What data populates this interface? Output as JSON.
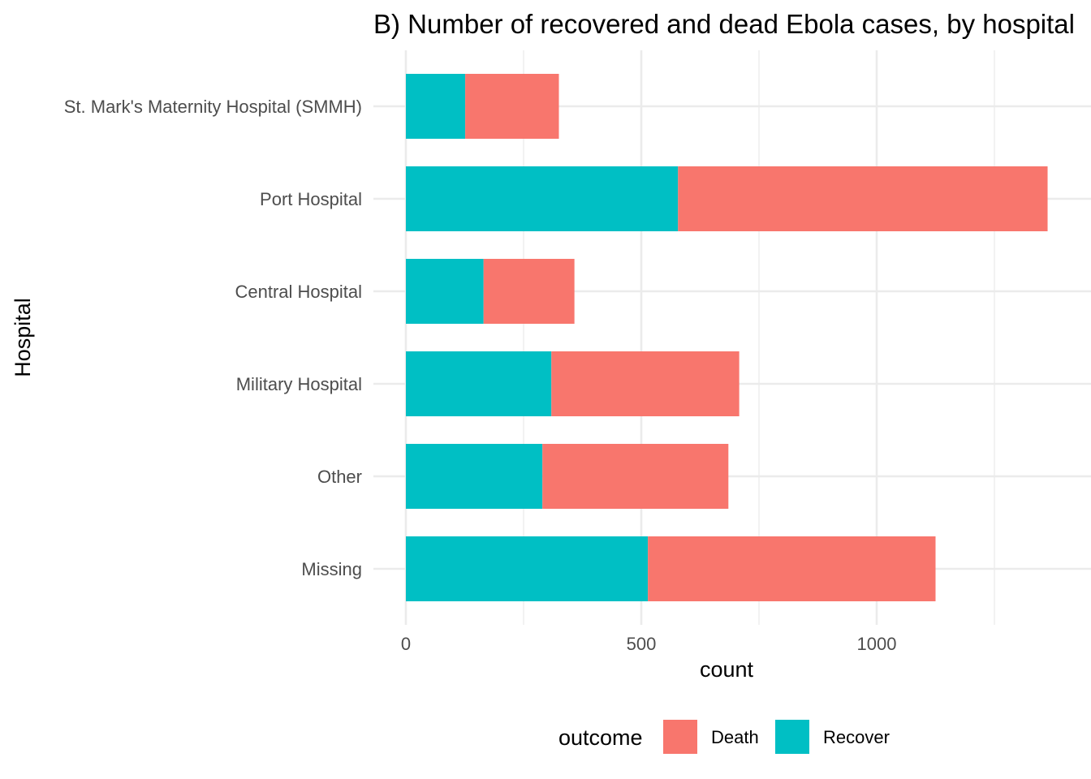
{
  "chart_data": {
    "type": "bar",
    "orientation": "horizontal",
    "stacked": true,
    "title": "B) Number of recovered and dead Ebola cases, by hospital",
    "xlabel": "count",
    "ylabel": "Hospital",
    "categories": [
      "St. Mark's Maternity Hospital (SMMH)",
      "Port Hospital",
      "Central Hospital",
      "Military Hospital",
      "Other",
      "Missing"
    ],
    "series": [
      {
        "name": "Recover",
        "color": "#00BFC4",
        "values": [
          126,
          578,
          165,
          309,
          290,
          514
        ]
      },
      {
        "name": "Death",
        "color": "#F8766D",
        "values": [
          199,
          785,
          193,
          399,
          395,
          611
        ]
      }
    ],
    "xlim": [
      -2,
      1430
    ],
    "x_ticks": [
      0,
      500,
      1000
    ],
    "x_tick_labels": [
      "0",
      "500",
      "1000"
    ],
    "x_minor_ticks": [
      250,
      750,
      1250
    ],
    "grid": true,
    "legend": {
      "title": "outcome",
      "position": "bottom",
      "items": [
        "Death",
        "Recover"
      ]
    }
  }
}
